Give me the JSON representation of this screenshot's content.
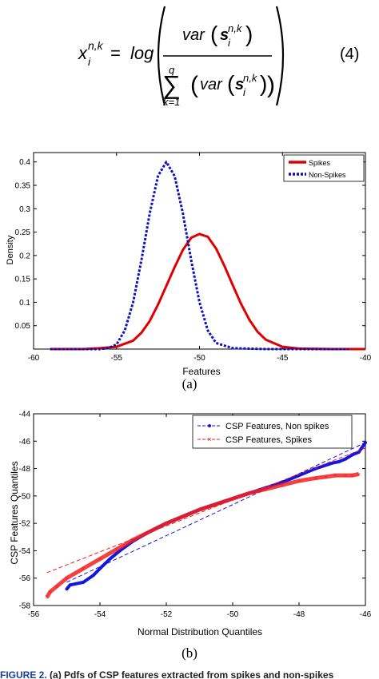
{
  "equation": {
    "lhs_base": "x",
    "lhs_sub": "i",
    "lhs_sup": "n,k",
    "equals": "=",
    "log": "log",
    "var": "var",
    "s_letter": "s",
    "s_sub": "i",
    "s_sup": "n,k",
    "sum_sign": "∑",
    "sum_upper": "q",
    "sum_lower": "k=1",
    "number": "(4)"
  },
  "figure_a": {
    "letter": "(a)",
    "chart_data": {
      "type": "line",
      "title": "",
      "xlabel": "Features",
      "ylabel": "Density",
      "xlim": [
        -60,
        -40
      ],
      "ylim": [
        0,
        0.42
      ],
      "xticks": [
        -60,
        -55,
        -50,
        -45,
        -40
      ],
      "xtick_labels": [
        "-60",
        "-55",
        "-50",
        "-45",
        "-40"
      ],
      "yticks": [
        0.05,
        0.1,
        0.15,
        0.2,
        0.25,
        0.3,
        0.35,
        0.4
      ],
      "ytick_labels": [
        "0.05",
        "0.1",
        "0.15",
        "0.2",
        "0.25",
        "0.3",
        "0.35",
        "0.4"
      ],
      "grid": false,
      "legend_position": "top-right",
      "series": [
        {
          "name": "Spikes",
          "color": "#e00000",
          "style": "solid",
          "x": [
            -59,
            -57,
            -56,
            -55,
            -54,
            -53.5,
            -53,
            -52.5,
            -52,
            -51.5,
            -51,
            -50.5,
            -50,
            -49.5,
            -49,
            -48.5,
            -48,
            -47.5,
            -47,
            -46.5,
            -46,
            -45,
            -44,
            -42,
            -40
          ],
          "y": [
            0.0,
            0.0,
            0.002,
            0.005,
            0.018,
            0.035,
            0.06,
            0.095,
            0.135,
            0.175,
            0.212,
            0.238,
            0.246,
            0.24,
            0.215,
            0.178,
            0.137,
            0.097,
            0.063,
            0.037,
            0.02,
            0.005,
            0.001,
            0.0,
            0.0
          ]
        },
        {
          "name": "Non-Spikes",
          "color": "#1010c0",
          "style": "dotted",
          "x": [
            -59,
            -57,
            -56,
            -55.5,
            -55,
            -54.5,
            -54,
            -53.5,
            -53,
            -52.5,
            -52,
            -51.5,
            -51,
            -50.5,
            -50,
            -49.5,
            -49,
            -48,
            -46,
            -44,
            -41
          ],
          "y": [
            0.0,
            0.0,
            0.0,
            0.002,
            0.01,
            0.04,
            0.1,
            0.19,
            0.29,
            0.37,
            0.4,
            0.37,
            0.29,
            0.19,
            0.1,
            0.04,
            0.013,
            0.002,
            0.0,
            0.0,
            0.0
          ]
        }
      ]
    }
  },
  "figure_b": {
    "letter": "(b)",
    "chart_data": {
      "type": "scatter",
      "title": "",
      "xlabel": "Normal Distribution Quantiles",
      "ylabel": "CSP Features Quantiles",
      "xlim": [
        -56,
        -46
      ],
      "ylim": [
        -58,
        -44
      ],
      "xticks": [
        -56,
        -54,
        -52,
        -50,
        -48,
        -46
      ],
      "xtick_labels": [
        "-56",
        "-54",
        "-52",
        "-50",
        "-48",
        "-46"
      ],
      "yticks": [
        -58,
        -56,
        -54,
        -52,
        -50,
        -48,
        -46,
        -44
      ],
      "ytick_labels": [
        "-58",
        "-56",
        "-54",
        "-52",
        "-50",
        "-48",
        "-46",
        "-44"
      ],
      "grid": false,
      "legend_position": "top-right",
      "series": [
        {
          "name": "CSP Features, Non spikes",
          "color": "#1515e0",
          "marker": "dot",
          "x": [
            -55,
            -54.9,
            -54.7,
            -54.5,
            -54.2,
            -54,
            -53.7,
            -53.4,
            -53,
            -52.5,
            -52,
            -51.5,
            -51,
            -50.5,
            -50,
            -49.5,
            -49,
            -48.5,
            -48,
            -47.5,
            -47,
            -46.8,
            -46.6,
            -46.4,
            -46.2,
            -46.0
          ],
          "y": [
            -56.8,
            -56.5,
            -56.4,
            -56.3,
            -55.8,
            -55.3,
            -54.6,
            -54.0,
            -53.3,
            -52.6,
            -52.0,
            -51.5,
            -51.0,
            -50.6,
            -50.2,
            -49.8,
            -49.4,
            -49.0,
            -48.5,
            -48.0,
            -47.6,
            -47.5,
            -47.3,
            -47.0,
            -46.8,
            -46.1
          ],
          "ref_line": {
            "x": [
              -55,
              -46
            ],
            "y": [
              -56.3,
              -46.1
            ]
          }
        },
        {
          "name": "CSP Features, Spikes",
          "color": "#f22020",
          "marker": "x",
          "x": [
            -55.6,
            -55.5,
            -55.3,
            -55,
            -54.5,
            -54,
            -53.5,
            -53,
            -52.5,
            -52,
            -51.5,
            -51,
            -50.5,
            -50,
            -49.5,
            -49,
            -48.5,
            -48,
            -47.5,
            -47.2,
            -46.9,
            -46.6,
            -46.4,
            -46.2
          ],
          "y": [
            -57.4,
            -57.0,
            -56.6,
            -56.0,
            -55.3,
            -54.6,
            -53.9,
            -53.2,
            -52.6,
            -52.0,
            -51.5,
            -51.0,
            -50.6,
            -50.2,
            -49.8,
            -49.5,
            -49.2,
            -48.9,
            -48.7,
            -48.6,
            -48.5,
            -48.5,
            -48.5,
            -48.4
          ],
          "ref_line": {
            "x": [
              -55.6,
              -46
            ],
            "y": [
              -55.6,
              -46.5
            ]
          }
        }
      ]
    }
  },
  "caption": {
    "label": "FIGURE 2.",
    "text": "(a) Pdfs of CSP features extracted from spikes and non-spikes"
  }
}
